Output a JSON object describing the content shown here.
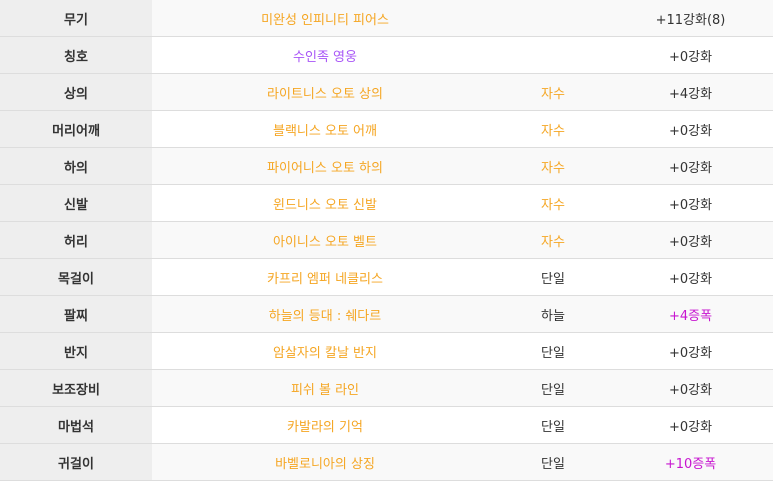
{
  "colors": {
    "unique": "#f5a623",
    "legendary_title": "#a855f7",
    "amplify": "#c715d0",
    "text": "#333333"
  },
  "rows": [
    {
      "slot": "무기",
      "name": "미완성 인피니티 피어스",
      "name_color": "#f5a623",
      "type": "",
      "type_color": "#333333",
      "enhance": "+11강화(8)",
      "enhance_color": "#333333"
    },
    {
      "slot": "칭호",
      "name": "수인족 영웅",
      "name_color": "#a855f7",
      "type": "",
      "type_color": "#333333",
      "enhance": "+0강화",
      "enhance_color": "#333333"
    },
    {
      "slot": "상의",
      "name": "라이트니스 오토 상의",
      "name_color": "#f5a623",
      "type": "자수",
      "type_color": "#f5a623",
      "enhance": "+4강화",
      "enhance_color": "#333333"
    },
    {
      "slot": "머리어깨",
      "name": "블랙니스 오토 어깨",
      "name_color": "#f5a623",
      "type": "자수",
      "type_color": "#f5a623",
      "enhance": "+0강화",
      "enhance_color": "#333333"
    },
    {
      "slot": "하의",
      "name": "파이어니스 오토 하의",
      "name_color": "#f5a623",
      "type": "자수",
      "type_color": "#f5a623",
      "enhance": "+0강화",
      "enhance_color": "#333333"
    },
    {
      "slot": "신발",
      "name": "윈드니스 오토 신발",
      "name_color": "#f5a623",
      "type": "자수",
      "type_color": "#f5a623",
      "enhance": "+0강화",
      "enhance_color": "#333333"
    },
    {
      "slot": "허리",
      "name": "아이니스 오토 벨트",
      "name_color": "#f5a623",
      "type": "자수",
      "type_color": "#f5a623",
      "enhance": "+0강화",
      "enhance_color": "#333333"
    },
    {
      "slot": "목걸이",
      "name": "카프리 엠퍼 네클리스",
      "name_color": "#f5a623",
      "type": "단일",
      "type_color": "#333333",
      "enhance": "+0강화",
      "enhance_color": "#333333"
    },
    {
      "slot": "팔찌",
      "name": "하늘의 등대 : 쉐다르",
      "name_color": "#f5a623",
      "type": "하늘",
      "type_color": "#333333",
      "enhance": "+4증폭",
      "enhance_color": "#c715d0"
    },
    {
      "slot": "반지",
      "name": "암살자의 칼날 반지",
      "name_color": "#f5a623",
      "type": "단일",
      "type_color": "#333333",
      "enhance": "+0강화",
      "enhance_color": "#333333"
    },
    {
      "slot": "보조장비",
      "name": "피쉬 볼 라인",
      "name_color": "#f5a623",
      "type": "단일",
      "type_color": "#333333",
      "enhance": "+0강화",
      "enhance_color": "#333333"
    },
    {
      "slot": "마법석",
      "name": "카발라의 기억",
      "name_color": "#f5a623",
      "type": "단일",
      "type_color": "#333333",
      "enhance": "+0강화",
      "enhance_color": "#333333"
    },
    {
      "slot": "귀걸이",
      "name": "바벨로니아의 상징",
      "name_color": "#f5a623",
      "type": "단일",
      "type_color": "#333333",
      "enhance": "+10증폭",
      "enhance_color": "#c715d0"
    }
  ]
}
